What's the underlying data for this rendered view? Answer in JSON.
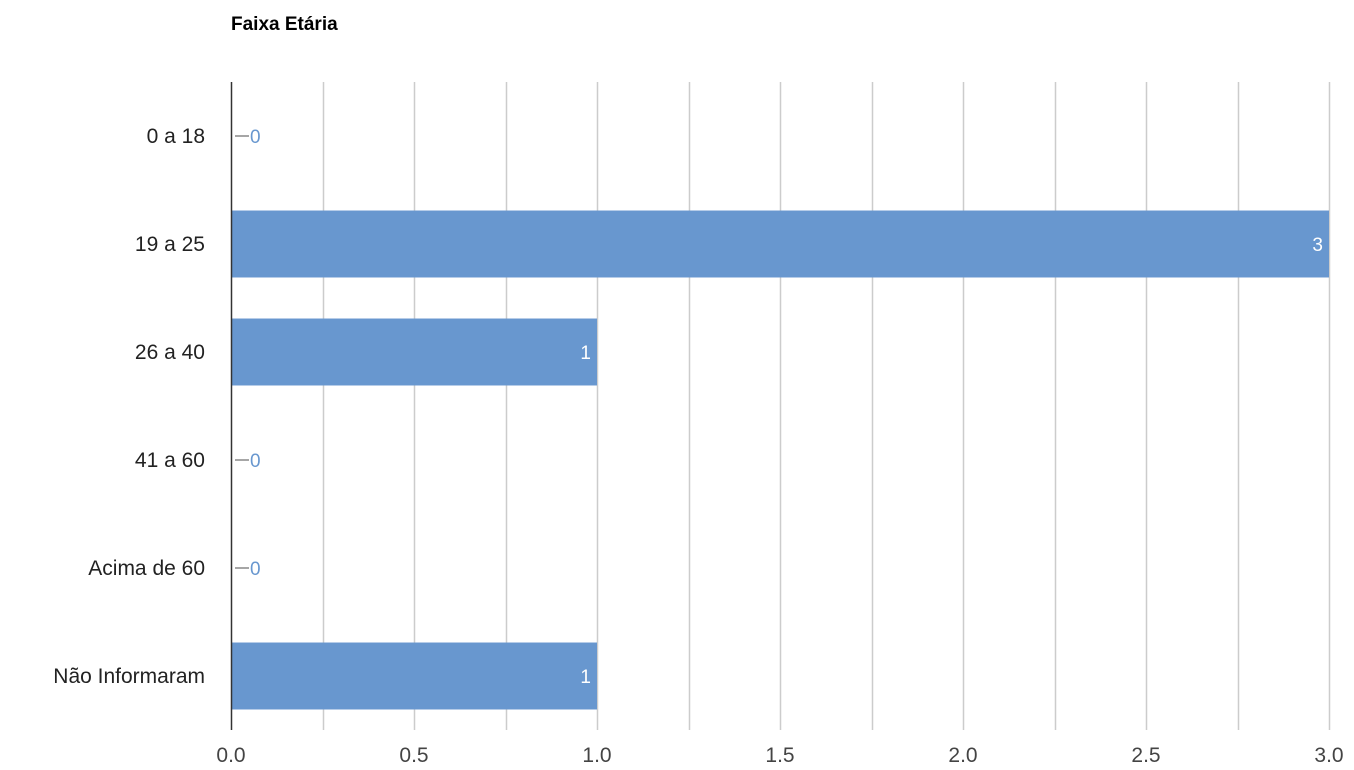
{
  "chart_data": {
    "type": "bar",
    "orientation": "horizontal",
    "title": "Faixa Etária",
    "categories": [
      "0 a 18",
      "19 a 25",
      "26 a 40",
      "41 a 60",
      "Acima de 60",
      "Não Informaram"
    ],
    "values": [
      0,
      3,
      1,
      0,
      0,
      1
    ],
    "xlim": [
      0,
      3
    ],
    "xticks": [
      "0.0",
      "0.5",
      "1.0",
      "1.5",
      "2.0",
      "2.5",
      "3.0"
    ],
    "grid": true,
    "legend": "none",
    "bar_color": "#6897cf",
    "inside_label_color": "#ffffff",
    "outside_label_color": "#6897cf"
  }
}
